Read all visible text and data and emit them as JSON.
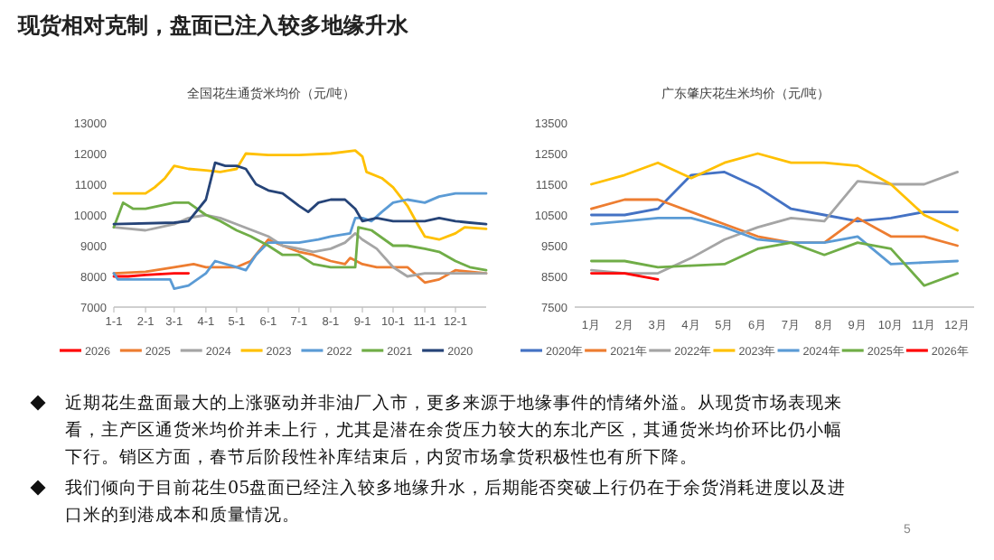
{
  "chart_data": [
    {
      "type": "line",
      "title": "全国花生通货米均价（元/吨）",
      "legend": "bottom",
      "xlim": [
        "--01-01",
        "--12-31"
      ],
      "xticks": [
        {
          "value": "--01-01",
          "label": "1-1"
        },
        {
          "value": "--02-01",
          "label": "2-1"
        },
        {
          "value": "--03-01",
          "label": "3-1"
        },
        {
          "value": "--04-01",
          "label": "4-1"
        },
        {
          "value": "--05-01",
          "label": "5-1"
        },
        {
          "value": "--06-01",
          "label": "6-1"
        },
        {
          "value": "--07-01",
          "label": "7-1"
        },
        {
          "value": "--08-01",
          "label": "8-1"
        },
        {
          "value": "--09-01",
          "label": "9-1"
        },
        {
          "value": "--10-01",
          "label": "10-1"
        },
        {
          "value": "--11-01",
          "label": "11-1"
        },
        {
          "value": "--12-01",
          "label": "12-1"
        }
      ],
      "ylim": [
        7000,
        13000
      ],
      "yticks": [
        7000,
        8000,
        9000,
        10000,
        11000,
        12000,
        13000
      ],
      "series": [
        {
          "name": "2026",
          "color": "#ff0000",
          "x": [
            "--01-01",
            "--01-15",
            "--02-01",
            "--03-01",
            "--03-15"
          ],
          "values": [
            8000,
            8000,
            8050,
            8100,
            8100
          ]
        },
        {
          "name": "2025",
          "color": "#ed7d31",
          "x": [
            "--01-01",
            "--02-01",
            "--03-01",
            "--03-20",
            "--04-01",
            "--05-01",
            "--05-15",
            "--06-01",
            "--06-15",
            "--07-01",
            "--07-15",
            "--08-01",
            "--08-15",
            "--08-20",
            "--09-01",
            "--09-15",
            "--10-01",
            "--10-15",
            "--11-01",
            "--11-15",
            "--12-01",
            "--12-31"
          ],
          "values": [
            8100,
            8150,
            8300,
            8400,
            8300,
            8300,
            8500,
            9200,
            9000,
            8800,
            8700,
            8500,
            8400,
            8600,
            8400,
            8300,
            8300,
            8300,
            7800,
            7900,
            8200,
            8100
          ]
        },
        {
          "name": "2024",
          "color": "#a5a5a5",
          "x": [
            "--01-01",
            "--02-01",
            "--03-01",
            "--03-15",
            "--04-01",
            "--04-15",
            "--05-01",
            "--06-01",
            "--06-15",
            "--07-01",
            "--07-15",
            "--08-01",
            "--08-15",
            "--08-25",
            "--09-01",
            "--09-15",
            "--10-01",
            "--10-15",
            "--11-01",
            "--11-15",
            "--12-01",
            "--12-31"
          ],
          "values": [
            9600,
            9500,
            9700,
            9900,
            10000,
            9900,
            9700,
            9300,
            9000,
            8900,
            8800,
            8900,
            9100,
            9400,
            9200,
            8900,
            8300,
            8000,
            8100,
            8100,
            8100,
            8100
          ]
        },
        {
          "name": "2023",
          "color": "#ffc000",
          "x": [
            "--01-01",
            "--02-01",
            "--02-10",
            "--02-20",
            "--03-01",
            "--03-15",
            "--04-01",
            "--04-15",
            "--05-01",
            "--05-10",
            "--06-01",
            "--07-01",
            "--08-01",
            "--08-25",
            "--09-01",
            "--09-05",
            "--09-20",
            "--10-01",
            "--10-15",
            "--10-25",
            "--11-01",
            "--11-15",
            "--12-01",
            "--12-10",
            "--12-31"
          ],
          "values": [
            10700,
            10700,
            10900,
            11200,
            11600,
            11500,
            11450,
            11400,
            11500,
            12000,
            11950,
            11950,
            12000,
            12100,
            11900,
            11400,
            11200,
            10900,
            10300,
            9700,
            9300,
            9200,
            9400,
            9600,
            9550
          ]
        },
        {
          "name": "2022",
          "color": "#5b9bd5",
          "x": [
            "--01-01",
            "--01-05",
            "--02-01",
            "--02-25",
            "--03-01",
            "--03-15",
            "--04-01",
            "--04-10",
            "--05-01",
            "--05-10",
            "--05-20",
            "--06-01",
            "--07-01",
            "--07-20",
            "--08-01",
            "--08-20",
            "--08-25",
            "--09-01",
            "--09-10",
            "--09-20",
            "--10-01",
            "--10-15",
            "--11-01",
            "--11-15",
            "--12-01",
            "--12-31"
          ],
          "values": [
            8100,
            7900,
            7900,
            7900,
            7600,
            7700,
            8100,
            8500,
            8300,
            8200,
            8700,
            9100,
            9100,
            9200,
            9300,
            9400,
            9900,
            9900,
            9800,
            10100,
            10400,
            10500,
            10400,
            10600,
            10700,
            10700
          ]
        },
        {
          "name": "2021",
          "color": "#70ad47",
          "x": [
            "--01-01",
            "--01-10",
            "--01-20",
            "--02-01",
            "--03-01",
            "--03-15",
            "--04-01",
            "--04-15",
            "--05-01",
            "--05-15",
            "--06-01",
            "--06-15",
            "--07-01",
            "--07-15",
            "--08-01",
            "--08-25",
            "--08-28",
            "--09-10",
            "--10-01",
            "--10-15",
            "--11-01",
            "--11-15",
            "--12-01",
            "--12-15",
            "--12-31"
          ],
          "values": [
            9600,
            10400,
            10200,
            10200,
            10400,
            10400,
            10000,
            9800,
            9500,
            9300,
            9000,
            8700,
            8700,
            8400,
            8300,
            8300,
            9600,
            9500,
            9000,
            9000,
            8900,
            8800,
            8500,
            8300,
            8200
          ]
        },
        {
          "name": "2020",
          "color": "#264478",
          "x": [
            "--01-01",
            "--03-01",
            "--03-15",
            "--04-01",
            "--04-10",
            "--04-20",
            "--05-01",
            "--05-10",
            "--05-20",
            "--06-01",
            "--06-15",
            "--07-01",
            "--07-10",
            "--07-20",
            "--08-01",
            "--08-15",
            "--08-25",
            "--09-01",
            "--09-15",
            "--10-01",
            "--10-15",
            "--11-01",
            "--11-15",
            "--12-01",
            "--12-15",
            "--12-31"
          ],
          "values": [
            9700,
            9750,
            9800,
            10500,
            11700,
            11600,
            11600,
            11500,
            11000,
            10800,
            10700,
            10300,
            10100,
            10400,
            10500,
            10500,
            10200,
            9800,
            9900,
            9800,
            9800,
            9800,
            9900,
            9800,
            9750,
            9700
          ]
        }
      ]
    },
    {
      "type": "line",
      "title": "广东肇庆花生米均价（元/吨）",
      "legend": "bottom",
      "categories": [
        "1月",
        "2月",
        "3月",
        "4月",
        "5月",
        "6月",
        "7月",
        "8月",
        "9月",
        "10月",
        "11月",
        "12月"
      ],
      "ylim": [
        7500,
        13500
      ],
      "yticks": [
        7500,
        8500,
        9500,
        10500,
        11500,
        12500,
        13500
      ],
      "series": [
        {
          "name": "2020年",
          "color": "#4472c4",
          "values": [
            10500,
            10500,
            10700,
            11800,
            11900,
            11400,
            10700,
            10500,
            10300,
            10400,
            10600,
            10600
          ]
        },
        {
          "name": "2021年",
          "color": "#ed7d31",
          "values": [
            10700,
            11000,
            11000,
            10600,
            10200,
            9800,
            9600,
            9600,
            10400,
            9800,
            9800,
            9500
          ]
        },
        {
          "name": "2022年",
          "color": "#a5a5a5",
          "values": [
            8700,
            8600,
            8600,
            9100,
            9700,
            10100,
            10400,
            10300,
            11600,
            11500,
            11500,
            11900
          ]
        },
        {
          "name": "2023年",
          "color": "#ffc000",
          "values": [
            11500,
            11800,
            12200,
            11700,
            12200,
            12500,
            12200,
            12200,
            12100,
            11500,
            10500,
            10000
          ]
        },
        {
          "name": "2024年",
          "color": "#5b9bd5",
          "values": [
            10200,
            10300,
            10400,
            10400,
            10100,
            9700,
            9600,
            9600,
            9800,
            8900,
            8950,
            9000
          ]
        },
        {
          "name": "2025年",
          "color": "#70ad47",
          "values": [
            9000,
            9000,
            8800,
            8850,
            8900,
            9400,
            9600,
            9200,
            9600,
            9400,
            8200,
            8600
          ]
        },
        {
          "name": "2026年",
          "color": "#ff0000",
          "values": [
            8600,
            8600,
            8400,
            null,
            null,
            null,
            null,
            null,
            null,
            null,
            null,
            null
          ]
        }
      ]
    },
    {
      "type": "other",
      "title": "现货相对克制，盘面已注入较多地缘升水",
      "annotations": [
        "近期花生盘面最大的上涨驱动并非油厂入市，更多来源于地缘事件的情绪外溢。从现货市场表现来看，主产区通货米均价并未上行，尤其是潜在余货压力较大的东北产区，其通货米均价环比仍小幅下行。销区方面，春节后阶段性补库结束后，内贸市场拿货积极性也有所下降。",
        "我们倾向于目前花生05盘面已经注入较多地缘升水，后期能否突破上行仍在于余货消耗进度以及进口米的到港成本和质量情况。",
        "5"
      ]
    }
  ]
}
